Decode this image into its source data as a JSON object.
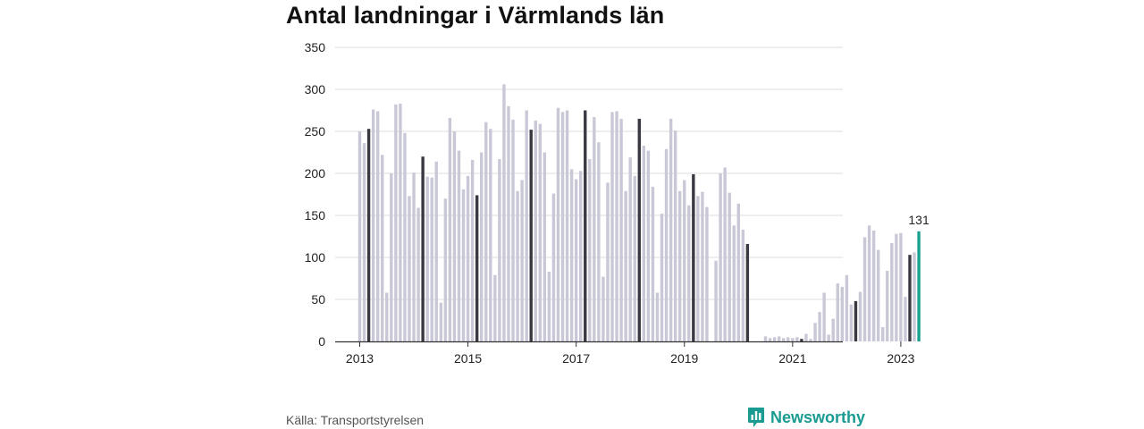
{
  "chart_data": {
    "type": "bar",
    "title": "Antal landningar i Värmlands län",
    "xlabel": "",
    "ylabel": "",
    "ylim": [
      0,
      350
    ],
    "yticks": [
      0,
      50,
      100,
      150,
      200,
      250,
      300,
      350
    ],
    "xticks": [
      "2013",
      "2015",
      "2017",
      "2019",
      "2021",
      "2023"
    ],
    "grid": true,
    "start": "2013-01",
    "values": [
      250,
      236,
      253,
      276,
      274,
      222,
      58,
      200,
      282,
      283,
      248,
      173,
      201,
      159,
      220,
      196,
      195,
      214,
      46,
      170,
      266,
      250,
      227,
      181,
      197,
      216,
      174,
      225,
      261,
      253,
      79,
      217,
      306,
      280,
      264,
      179,
      192,
      275,
      252,
      263,
      259,
      225,
      83,
      176,
      278,
      273,
      275,
      205,
      193,
      203,
      275,
      217,
      267,
      237,
      77,
      189,
      273,
      274,
      265,
      179,
      219,
      197,
      265,
      233,
      227,
      184,
      58,
      152,
      229,
      265,
      251,
      179,
      192,
      162,
      199,
      173,
      178,
      160,
      0,
      96,
      200,
      207,
      177,
      138,
      164,
      133,
      116,
      0,
      0,
      0,
      6,
      4,
      5,
      6,
      4,
      5,
      4,
      5,
      3,
      9,
      3,
      22,
      35,
      58,
      8,
      27,
      69,
      65,
      79,
      44,
      48,
      59,
      124,
      138,
      132,
      109,
      17,
      84,
      117,
      128,
      129,
      53,
      103,
      106,
      131
    ],
    "january_color": "#3a3942",
    "bar_color": "#c9c8d6",
    "highlight_color": "#19a08f",
    "annotation": "131"
  },
  "source": "Källa: Transportstyrelsen",
  "brand": {
    "name": "Newsworthy",
    "icon": "bar-chart-badge-icon",
    "color": "#1a9b92"
  }
}
